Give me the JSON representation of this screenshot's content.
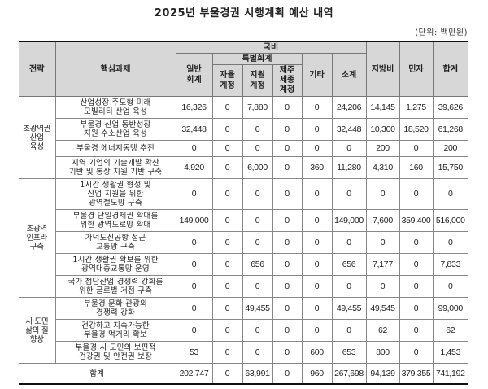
{
  "title": "2025년 부울경권 시행계획 예산 내역",
  "unit": "(단위: 백만원)",
  "headers": {
    "strategy": "전략",
    "task": "핵심과제",
    "national": "국비",
    "special": "특별회계",
    "general": "일반\n회계",
    "autonomous": "자율\n계정",
    "support": "지원\n계정",
    "jeju": "제주\n세종\n계정",
    "other": "기타",
    "subtotal": "소계",
    "local": "지방비",
    "private": "민자",
    "total": "합계"
  },
  "groups": [
    {
      "strategy": "초광역권\n산업\n육성",
      "rows": [
        {
          "task": "산업성장 주도형 미래\n모빌리티 산업 육성",
          "values": [
            "16,326",
            "0",
            "7,880",
            "0",
            "0",
            "24,206",
            "14,145",
            "1,275",
            "39,626"
          ]
        },
        {
          "task": "부울경 산업 동반성장\n지원 수소산업 육성",
          "values": [
            "32,448",
            "0",
            "0",
            "0",
            "0",
            "32,448",
            "10,300",
            "18,520",
            "61,268"
          ]
        },
        {
          "task": "부울경 에너지동맹 추진",
          "values": [
            "0",
            "0",
            "0",
            "0",
            "0",
            "0",
            "200",
            "0",
            "200"
          ]
        },
        {
          "task": "지역 기업의 기술개발 확산\n기반 및 통상 지원 기반 구축",
          "values": [
            "4,920",
            "0",
            "6,000",
            "0",
            "360",
            "11,280",
            "4,310",
            "160",
            "15,750"
          ]
        }
      ]
    },
    {
      "strategy": "초광역\n인프라\n구축",
      "rows": [
        {
          "task": "1시간 생활권 형성 및\n산업 지원을 위한\n광역철도망 구축",
          "values": [
            "0",
            "0",
            "0",
            "0",
            "0",
            "0",
            "0",
            "0",
            "0"
          ]
        },
        {
          "task": "부울경 단일경제권 확대를\n위한 광역도로망 확대",
          "values": [
            "149,000",
            "0",
            "0",
            "0",
            "0",
            "149,000",
            "7,600",
            "359,400",
            "516,000"
          ]
        },
        {
          "task": "가덕도신공항 접근\n교통망 구축",
          "values": [
            "0",
            "0",
            "0",
            "0",
            "0",
            "0",
            "0",
            "0",
            "0"
          ]
        },
        {
          "task": "1시간 생활권 확보를 위한\n광역대중교통망 운영",
          "values": [
            "0",
            "0",
            "656",
            "0",
            "0",
            "656",
            "7,177",
            "0",
            "7,833"
          ]
        },
        {
          "task": "국가 첨단산업 경쟁력 강화를\n위한 글로벌 거점 구축",
          "values": [
            "0",
            "0",
            "0",
            "0",
            "0",
            "0",
            "0",
            "0",
            "0"
          ]
        }
      ]
    },
    {
      "strategy": "시·도민\n삶의 질\n향상",
      "rows": [
        {
          "task": "부울경 문화·관광의\n경쟁력 강화",
          "values": [
            "0",
            "0",
            "49,455",
            "0",
            "0",
            "49,455",
            "49,545",
            "0",
            "99,000"
          ]
        },
        {
          "task": "건강하고 지속가능한\n부울경 먹거리 확보",
          "values": [
            "0",
            "0",
            "0",
            "0",
            "0",
            "0",
            "62",
            "0",
            "62"
          ]
        },
        {
          "task": "부울경 시·도민의 보편적\n건강권 및 안전권 보장",
          "values": [
            "53",
            "0",
            "0",
            "0",
            "600",
            "653",
            "800",
            "0",
            "1,453"
          ]
        }
      ]
    }
  ],
  "total": {
    "label": "합계",
    "values": [
      "202,747",
      "0",
      "63,991",
      "0",
      "960",
      "267,698",
      "94,139",
      "379,355",
      "741,192"
    ]
  }
}
